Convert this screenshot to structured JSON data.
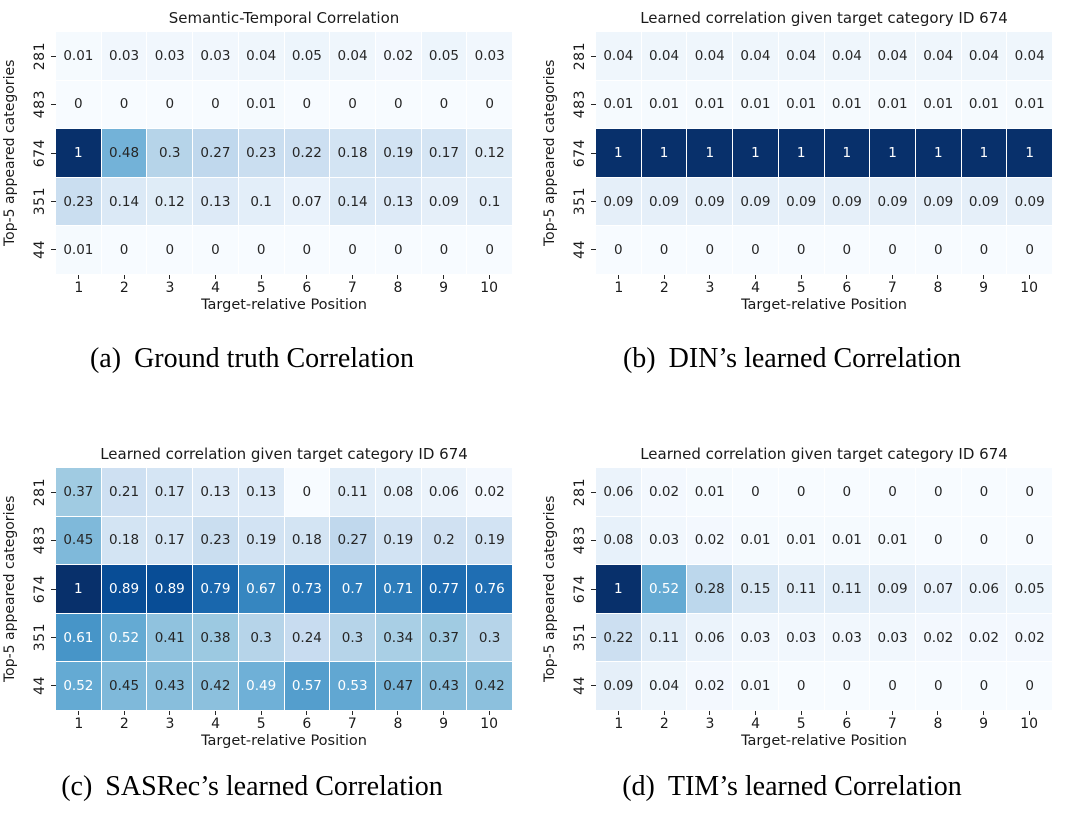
{
  "page": {
    "background": "#ffffff"
  },
  "colormap": {
    "name": "Blues",
    "anchors": [
      "#f7fbff",
      "#deebf7",
      "#c6dbef",
      "#9ecae1",
      "#6baed6",
      "#4292c6",
      "#2171b5",
      "#08519c",
      "#08306b"
    ],
    "dark_text": "#262626",
    "light_text": "#ffffff"
  },
  "chart_data": [
    {
      "id": "a",
      "type": "heatmap",
      "title": "Semantic-Temporal Correlation",
      "xlabel": "Target-relative Position",
      "ylabel": "Top-5 appeared categories",
      "x_ticks": [
        "1",
        "2",
        "3",
        "4",
        "5",
        "6",
        "7",
        "8",
        "9",
        "10"
      ],
      "y_ticks": [
        "281",
        "483",
        "674",
        "351",
        "44"
      ],
      "vmin": 0,
      "vmax": 1,
      "legend": "off",
      "grid": "off",
      "caption_label": "(a)",
      "caption_text": "Ground truth Correlation",
      "values": [
        [
          0.01,
          0.03,
          0.03,
          0.03,
          0.04,
          0.05,
          0.04,
          0.02,
          0.05,
          0.03
        ],
        [
          0,
          0,
          0,
          0,
          0.01,
          0,
          0,
          0,
          0,
          0
        ],
        [
          1,
          0.48,
          0.3,
          0.27,
          0.23,
          0.22,
          0.18,
          0.19,
          0.17,
          0.12
        ],
        [
          0.23,
          0.14,
          0.12,
          0.13,
          0.1,
          0.07,
          0.14,
          0.13,
          0.09,
          0.1
        ],
        [
          0.01,
          0,
          0,
          0,
          0,
          0,
          0,
          0,
          0,
          0
        ]
      ]
    },
    {
      "id": "b",
      "type": "heatmap",
      "title": "Learned correlation given target category ID 674",
      "xlabel": "Target-relative Position",
      "ylabel": "Top-5 appeared categories",
      "x_ticks": [
        "1",
        "2",
        "3",
        "4",
        "5",
        "6",
        "7",
        "8",
        "9",
        "10"
      ],
      "y_ticks": [
        "281",
        "483",
        "674",
        "351",
        "44"
      ],
      "vmin": 0,
      "vmax": 1,
      "legend": "off",
      "grid": "off",
      "caption_label": "(b)",
      "caption_text": "DIN’s learned Correlation",
      "values": [
        [
          0.04,
          0.04,
          0.04,
          0.04,
          0.04,
          0.04,
          0.04,
          0.04,
          0.04,
          0.04
        ],
        [
          0.01,
          0.01,
          0.01,
          0.01,
          0.01,
          0.01,
          0.01,
          0.01,
          0.01,
          0.01
        ],
        [
          1,
          1,
          1,
          1,
          1,
          1,
          1,
          1,
          1,
          1
        ],
        [
          0.09,
          0.09,
          0.09,
          0.09,
          0.09,
          0.09,
          0.09,
          0.09,
          0.09,
          0.09
        ],
        [
          0,
          0,
          0,
          0,
          0,
          0,
          0,
          0,
          0,
          0
        ]
      ]
    },
    {
      "id": "c",
      "type": "heatmap",
      "title": "Learned correlation given target category ID 674",
      "xlabel": "Target-relative Position",
      "ylabel": "Top-5 appeared categories",
      "x_ticks": [
        "1",
        "2",
        "3",
        "4",
        "5",
        "6",
        "7",
        "8",
        "9",
        "10"
      ],
      "y_ticks": [
        "281",
        "483",
        "674",
        "351",
        "44"
      ],
      "vmin": 0,
      "vmax": 1,
      "legend": "off",
      "grid": "off",
      "caption_label": "(c)",
      "caption_text": "SASRec’s learned Correlation",
      "values": [
        [
          0.37,
          0.21,
          0.17,
          0.13,
          0.13,
          0,
          0.11,
          0.08,
          0.06,
          0.02
        ],
        [
          0.45,
          0.18,
          0.17,
          0.23,
          0.19,
          0.18,
          0.27,
          0.19,
          0.2,
          0.19
        ],
        [
          1,
          0.89,
          0.89,
          0.79,
          0.67,
          0.73,
          0.7,
          0.71,
          0.77,
          0.76
        ],
        [
          0.61,
          0.52,
          0.41,
          0.38,
          0.3,
          0.24,
          0.3,
          0.34,
          0.37,
          0.3
        ],
        [
          0.52,
          0.45,
          0.43,
          0.42,
          0.49,
          0.57,
          0.53,
          0.47,
          0.43,
          0.42
        ]
      ]
    },
    {
      "id": "d",
      "type": "heatmap",
      "title": "Learned correlation given target category ID 674",
      "xlabel": "Target-relative Position",
      "ylabel": "Top-5 appeared categories",
      "x_ticks": [
        "1",
        "2",
        "3",
        "4",
        "5",
        "6",
        "7",
        "8",
        "9",
        "10"
      ],
      "y_ticks": [
        "281",
        "483",
        "674",
        "351",
        "44"
      ],
      "vmin": 0,
      "vmax": 1,
      "legend": "off",
      "grid": "off",
      "caption_label": "(d)",
      "caption_text": "TIM’s learned Correlation",
      "values": [
        [
          0.06,
          0.02,
          0.01,
          0,
          0,
          0,
          0,
          0,
          0,
          0
        ],
        [
          0.08,
          0.03,
          0.02,
          0.01,
          0.01,
          0.01,
          0.01,
          0,
          0,
          0
        ],
        [
          1,
          0.52,
          0.28,
          0.15,
          0.11,
          0.11,
          0.09,
          0.07,
          0.06,
          0.05
        ],
        [
          0.22,
          0.11,
          0.06,
          0.03,
          0.03,
          0.03,
          0.03,
          0.02,
          0.02,
          0.02
        ],
        [
          0.09,
          0.04,
          0.02,
          0.01,
          0,
          0,
          0,
          0,
          0,
          0
        ]
      ]
    }
  ]
}
